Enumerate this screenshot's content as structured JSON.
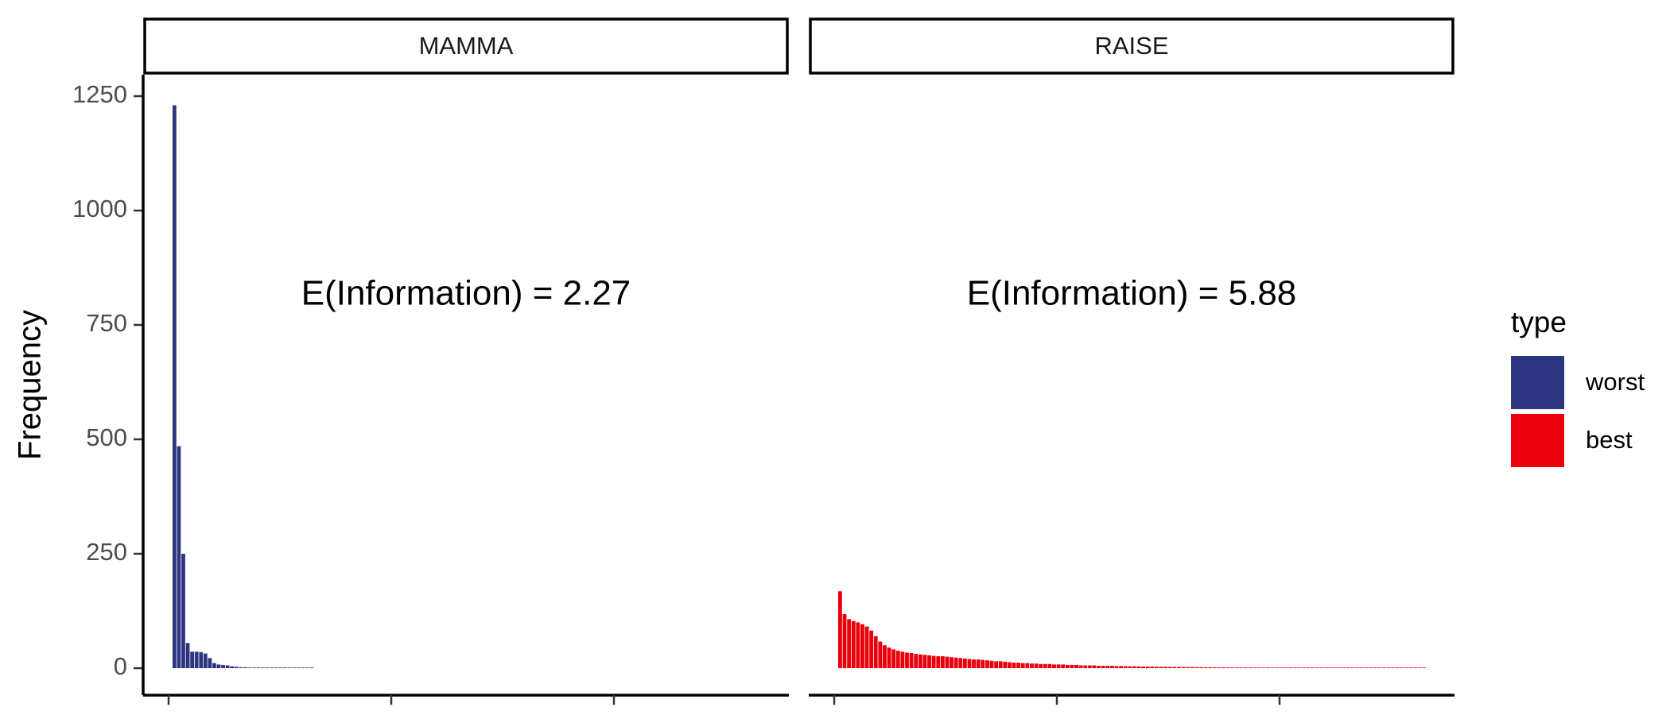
{
  "chart_data": {
    "type": "bar",
    "ylabel": "Frequency",
    "y_ticks": [
      0,
      250,
      500,
      750,
      1000,
      1250
    ],
    "ylim": [
      0,
      1300
    ],
    "x_tick_count": 3,
    "legend": {
      "title": "type",
      "placement": "right",
      "entries": [
        {
          "label": "worst",
          "color": "#2e3580"
        },
        {
          "label": "best",
          "color": "#e8000b"
        }
      ]
    },
    "facets": [
      {
        "strip": "MAMMA",
        "annotation": "E(Information) = 2.27",
        "series": "worst",
        "color": "#2e3580",
        "values": [
          1230,
          485,
          250,
          55,
          36,
          36,
          35,
          32,
          22,
          11,
          8,
          7,
          6,
          4,
          3,
          2,
          2,
          1.5,
          1,
          1,
          1,
          1,
          1,
          0.8,
          0.8,
          0.6,
          0.6,
          0.5,
          0.5,
          0.5,
          0.4,
          0.4
        ]
      },
      {
        "strip": "RAISE",
        "annotation": "E(Information) = 5.88",
        "series": "best",
        "color": "#e8000b",
        "values": [
          168,
          118,
          107,
          103,
          100,
          96,
          91,
          82,
          70,
          58,
          50,
          45,
          41,
          38,
          36,
          34,
          33,
          31,
          30,
          29,
          28,
          27,
          26,
          26,
          25,
          24,
          23,
          22,
          21,
          20,
          19,
          19,
          18,
          17,
          16,
          15,
          15,
          14,
          13,
          12,
          12,
          11,
          11,
          10,
          10,
          9,
          9,
          9,
          8,
          8,
          8,
          7,
          7,
          7,
          6,
          6,
          6,
          6,
          5,
          5,
          5,
          5,
          4.5,
          4.5,
          4.2,
          4,
          4,
          3.8,
          3.6,
          3.5,
          3.4,
          3.2,
          3,
          3,
          2.8,
          2.7,
          2.6,
          2.5,
          2.4,
          2.3,
          2.2,
          2.1,
          2,
          2,
          1.9,
          1.8,
          1.8,
          1.7,
          1.6,
          1.6,
          1.5,
          1.5,
          1.4,
          1.4,
          1.3,
          1.3,
          1.2,
          1.2,
          1.1,
          1.1,
          1,
          1,
          1,
          0.9,
          0.9,
          0.9,
          0.8,
          0.8,
          0.8,
          0.7,
          0.7,
          0.7,
          0.6,
          0.6,
          0.6,
          0.6,
          0.5,
          0.5,
          0.5,
          0.5,
          0.5,
          0.4,
          0.4,
          0.4,
          0.4,
          0.4,
          0.4,
          0.3,
          0.3,
          0.3,
          0.3,
          0.3
        ]
      }
    ]
  }
}
